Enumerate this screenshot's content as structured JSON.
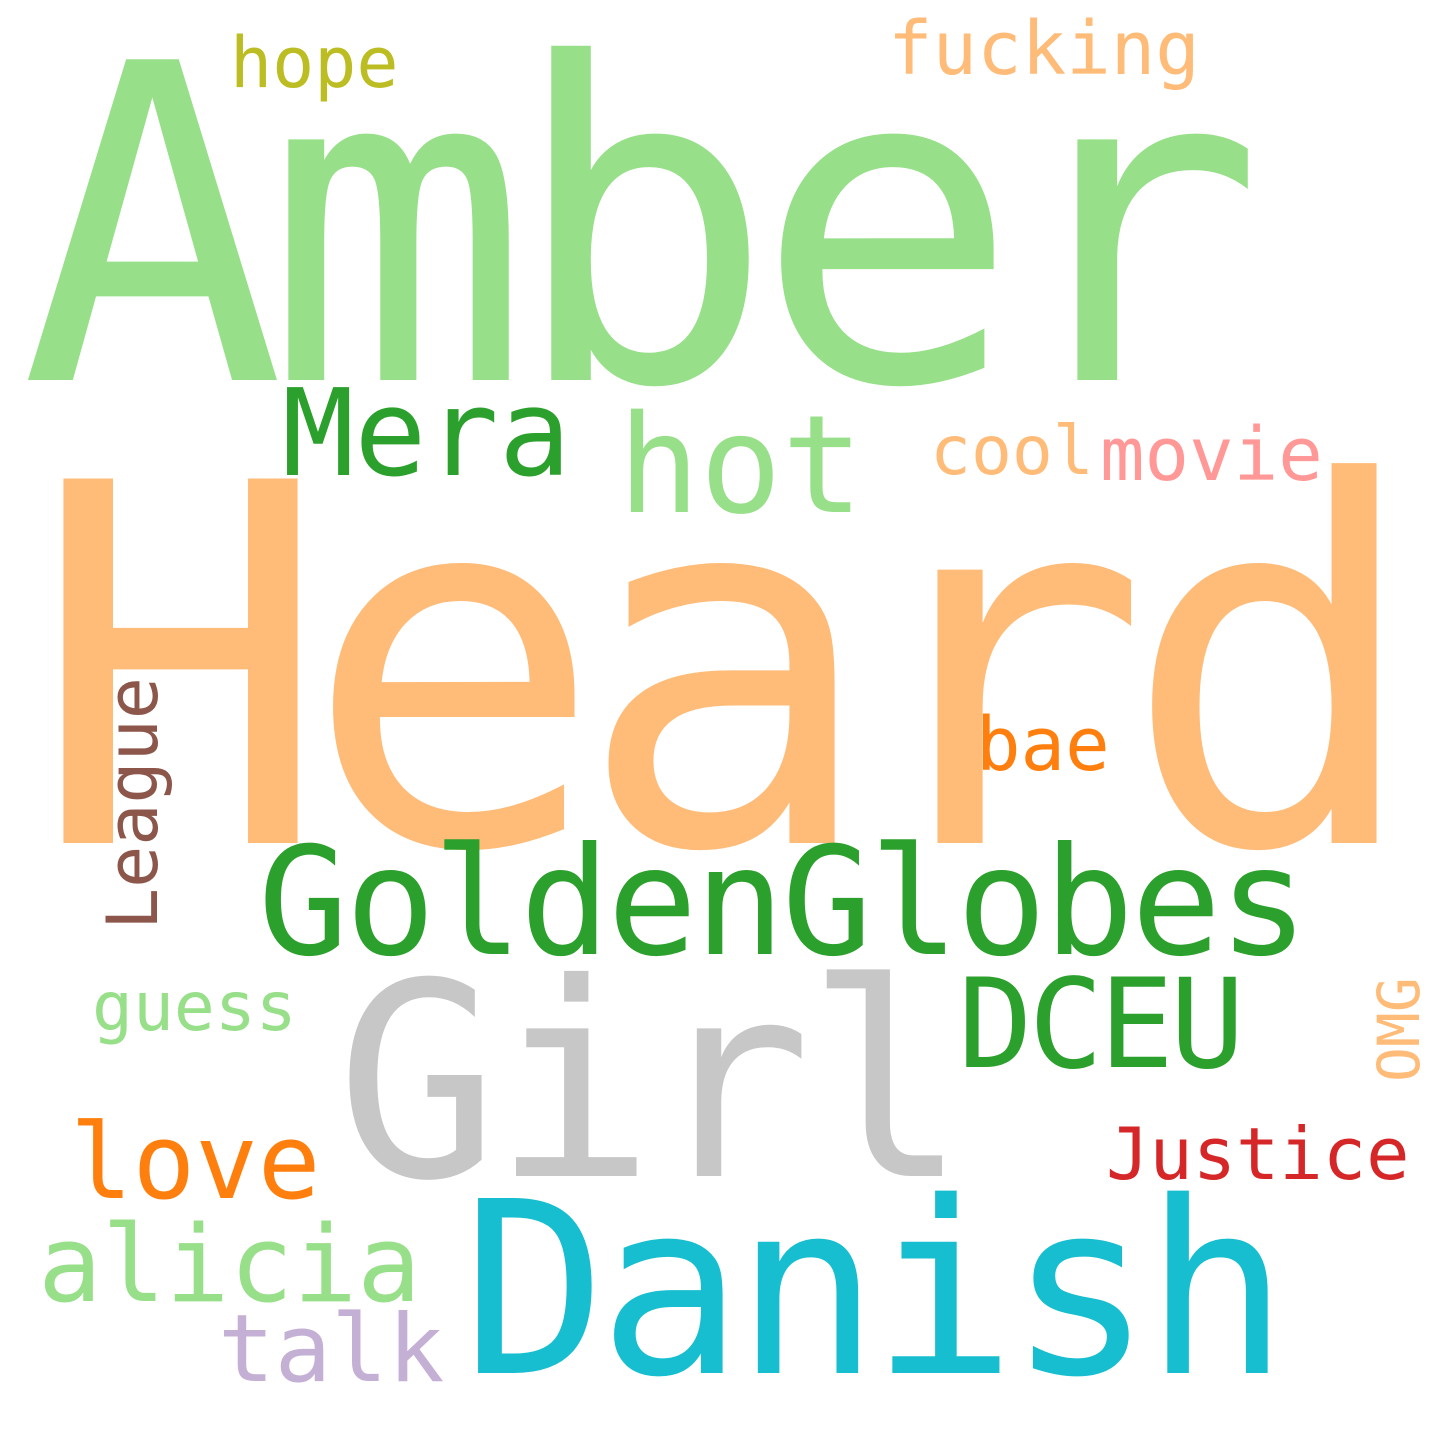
{
  "background": "#ffffff",
  "words": [
    {
      "id": "amber",
      "text": "Amber",
      "color": "#98df8a",
      "orientation": "horizontal"
    },
    {
      "id": "heard",
      "text": "Heard",
      "color": "#ffbb78",
      "orientation": "horizontal"
    },
    {
      "id": "goldenglobes",
      "text": "GoldenGlobes",
      "color": "#2ca02c",
      "orientation": "horizontal"
    },
    {
      "id": "girl",
      "text": "Girl",
      "color": "#c7c7c7",
      "orientation": "horizontal"
    },
    {
      "id": "danish",
      "text": "Danish",
      "color": "#17becf",
      "orientation": "horizontal"
    },
    {
      "id": "mera",
      "text": "Mera",
      "color": "#2ca02c",
      "orientation": "horizontal"
    },
    {
      "id": "hot",
      "text": "hot",
      "color": "#98df8a",
      "orientation": "horizontal"
    },
    {
      "id": "dceu",
      "text": "DCEU",
      "color": "#2ca02c",
      "orientation": "horizontal"
    },
    {
      "id": "love",
      "text": "love",
      "color": "#ff7f0e",
      "orientation": "horizontal"
    },
    {
      "id": "alicia",
      "text": "alicia",
      "color": "#98df8a",
      "orientation": "horizontal"
    },
    {
      "id": "talk",
      "text": "talk",
      "color": "#c5b0d5",
      "orientation": "horizontal"
    },
    {
      "id": "justice",
      "text": "Justice",
      "color": "#d62728",
      "orientation": "horizontal"
    },
    {
      "id": "fucking",
      "text": "fucking",
      "color": "#ffbb78",
      "orientation": "horizontal"
    },
    {
      "id": "hope",
      "text": "hope",
      "color": "#bcbd22",
      "orientation": "horizontal"
    },
    {
      "id": "cool",
      "text": "cool",
      "color": "#ffbb78",
      "orientation": "horizontal"
    },
    {
      "id": "movie",
      "text": "movie",
      "color": "#ff9896",
      "orientation": "horizontal"
    },
    {
      "id": "bae",
      "text": "bae",
      "color": "#ff7f0e",
      "orientation": "horizontal"
    },
    {
      "id": "guess",
      "text": "guess",
      "color": "#98df8a",
      "orientation": "horizontal"
    },
    {
      "id": "league",
      "text": "League",
      "color": "#8c564b",
      "orientation": "vertical"
    },
    {
      "id": "omg",
      "text": "OMG",
      "color": "#ffbb78",
      "orientation": "vertical"
    }
  ]
}
